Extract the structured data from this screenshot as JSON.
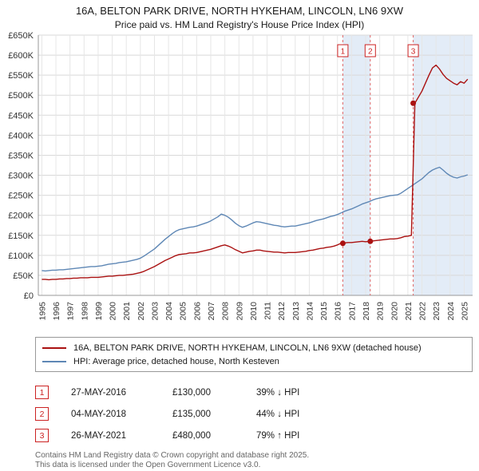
{
  "header": {
    "title": "16A, BELTON PARK DRIVE, NORTH HYKEHAM, LINCOLN, LN6 9XW",
    "subtitle": "Price paid vs. HM Land Registry's House Price Index (HPI)"
  },
  "chart_data": {
    "type": "line",
    "unit": "GBP thousands",
    "x_start": 1995,
    "x_step": 0.25,
    "xlim": [
      1994.75,
      2025.6
    ],
    "ylim": [
      0,
      650
    ],
    "y_tick_step": 50,
    "y_tick_prefix": "£",
    "y_tick_suffix": "K",
    "x_ticks": [
      1995,
      1996,
      1997,
      1998,
      1999,
      2000,
      2001,
      2002,
      2003,
      2004,
      2005,
      2006,
      2007,
      2008,
      2009,
      2010,
      2011,
      2012,
      2013,
      2014,
      2015,
      2016,
      2017,
      2018,
      2019,
      2020,
      2021,
      2022,
      2023,
      2024,
      2025
    ],
    "series": [
      {
        "name": "16A, BELTON PARK DRIVE, NORTH HYKEHAM, LINCOLN, LN6 9XW (detached house)",
        "color": "#aa1111",
        "values": [
          40,
          40,
          39,
          40,
          40,
          41,
          41,
          42,
          42,
          43,
          43,
          44,
          44,
          44,
          45,
          45,
          45,
          46,
          47,
          48,
          48,
          49,
          50,
          50,
          51,
          52,
          53,
          55,
          57,
          60,
          64,
          68,
          72,
          77,
          82,
          87,
          91,
          95,
          99,
          102,
          103,
          104,
          106,
          106,
          107,
          109,
          111,
          113,
          115,
          118,
          121,
          124,
          126,
          123,
          119,
          114,
          110,
          106,
          108,
          110,
          111,
          113,
          113,
          111,
          110,
          109,
          108,
          108,
          107,
          106,
          107,
          107,
          107,
          108,
          109,
          110,
          112,
          113,
          115,
          117,
          118,
          120,
          121,
          123,
          126,
          130,
          131,
          132,
          132,
          133,
          134,
          135,
          134,
          135,
          136,
          137,
          138,
          139,
          140,
          141,
          141,
          142,
          144,
          147,
          148,
          150,
          480,
          495,
          510,
          530,
          550,
          568,
          575,
          565,
          552,
          542,
          536,
          530,
          526,
          534,
          530,
          540
        ]
      },
      {
        "name": "HPI: Average price, detached house, North Kesteven",
        "color": "#5e87b5",
        "values": [
          62,
          61,
          62,
          63,
          63,
          64,
          64,
          65,
          66,
          67,
          68,
          69,
          70,
          71,
          72,
          72,
          73,
          74,
          76,
          78,
          79,
          80,
          82,
          83,
          84,
          86,
          88,
          90,
          93,
          98,
          104,
          110,
          116,
          124,
          132,
          140,
          147,
          154,
          160,
          164,
          166,
          168,
          170,
          171,
          173,
          176,
          179,
          182,
          186,
          191,
          196,
          203,
          200,
          195,
          188,
          180,
          174,
          170,
          173,
          177,
          181,
          184,
          183,
          181,
          179,
          177,
          175,
          174,
          172,
          171,
          172,
          173,
          173,
          175,
          177,
          179,
          181,
          184,
          187,
          189,
          191,
          194,
          197,
          199,
          202,
          206,
          210,
          213,
          216,
          220,
          224,
          228,
          231,
          234,
          238,
          241,
          243,
          245,
          247,
          249,
          250,
          251,
          255,
          261,
          267,
          273,
          279,
          285,
          291,
          299,
          307,
          313,
          317,
          320,
          313,
          305,
          299,
          295,
          293,
          296,
          298,
          301
        ]
      }
    ],
    "sales": [
      {
        "label": "1",
        "x": 2016.38,
        "value": 130,
        "date": "27-MAY-2016",
        "price": "£130,000",
        "hpi_delta": "39% ↓ HPI"
      },
      {
        "label": "2",
        "x": 2018.33,
        "value": 135,
        "date": "04-MAY-2018",
        "price": "£135,000",
        "hpi_delta": "44% ↓ HPI"
      },
      {
        "label": "3",
        "x": 2021.38,
        "value": 480,
        "date": "26-MAY-2021",
        "price": "£480,000",
        "hpi_delta": "79% ↑ HPI"
      }
    ],
    "owned_bands": [
      [
        2016.38,
        2018.33
      ],
      [
        2021.38,
        2025.6
      ]
    ],
    "colors": {
      "sale_line": "#e06666",
      "band": "#e3ecf7",
      "grid_h": "#d9d9d9",
      "grid_v": "#e6e6e6",
      "axis": "#999999",
      "marker": "#aa1111",
      "sale_box": "#cc2222"
    }
  },
  "footer": {
    "line1": "Contains HM Land Registry data © Crown copyright and database right 2025.",
    "line2": "This data is licensed under the Open Government Licence v3.0."
  }
}
